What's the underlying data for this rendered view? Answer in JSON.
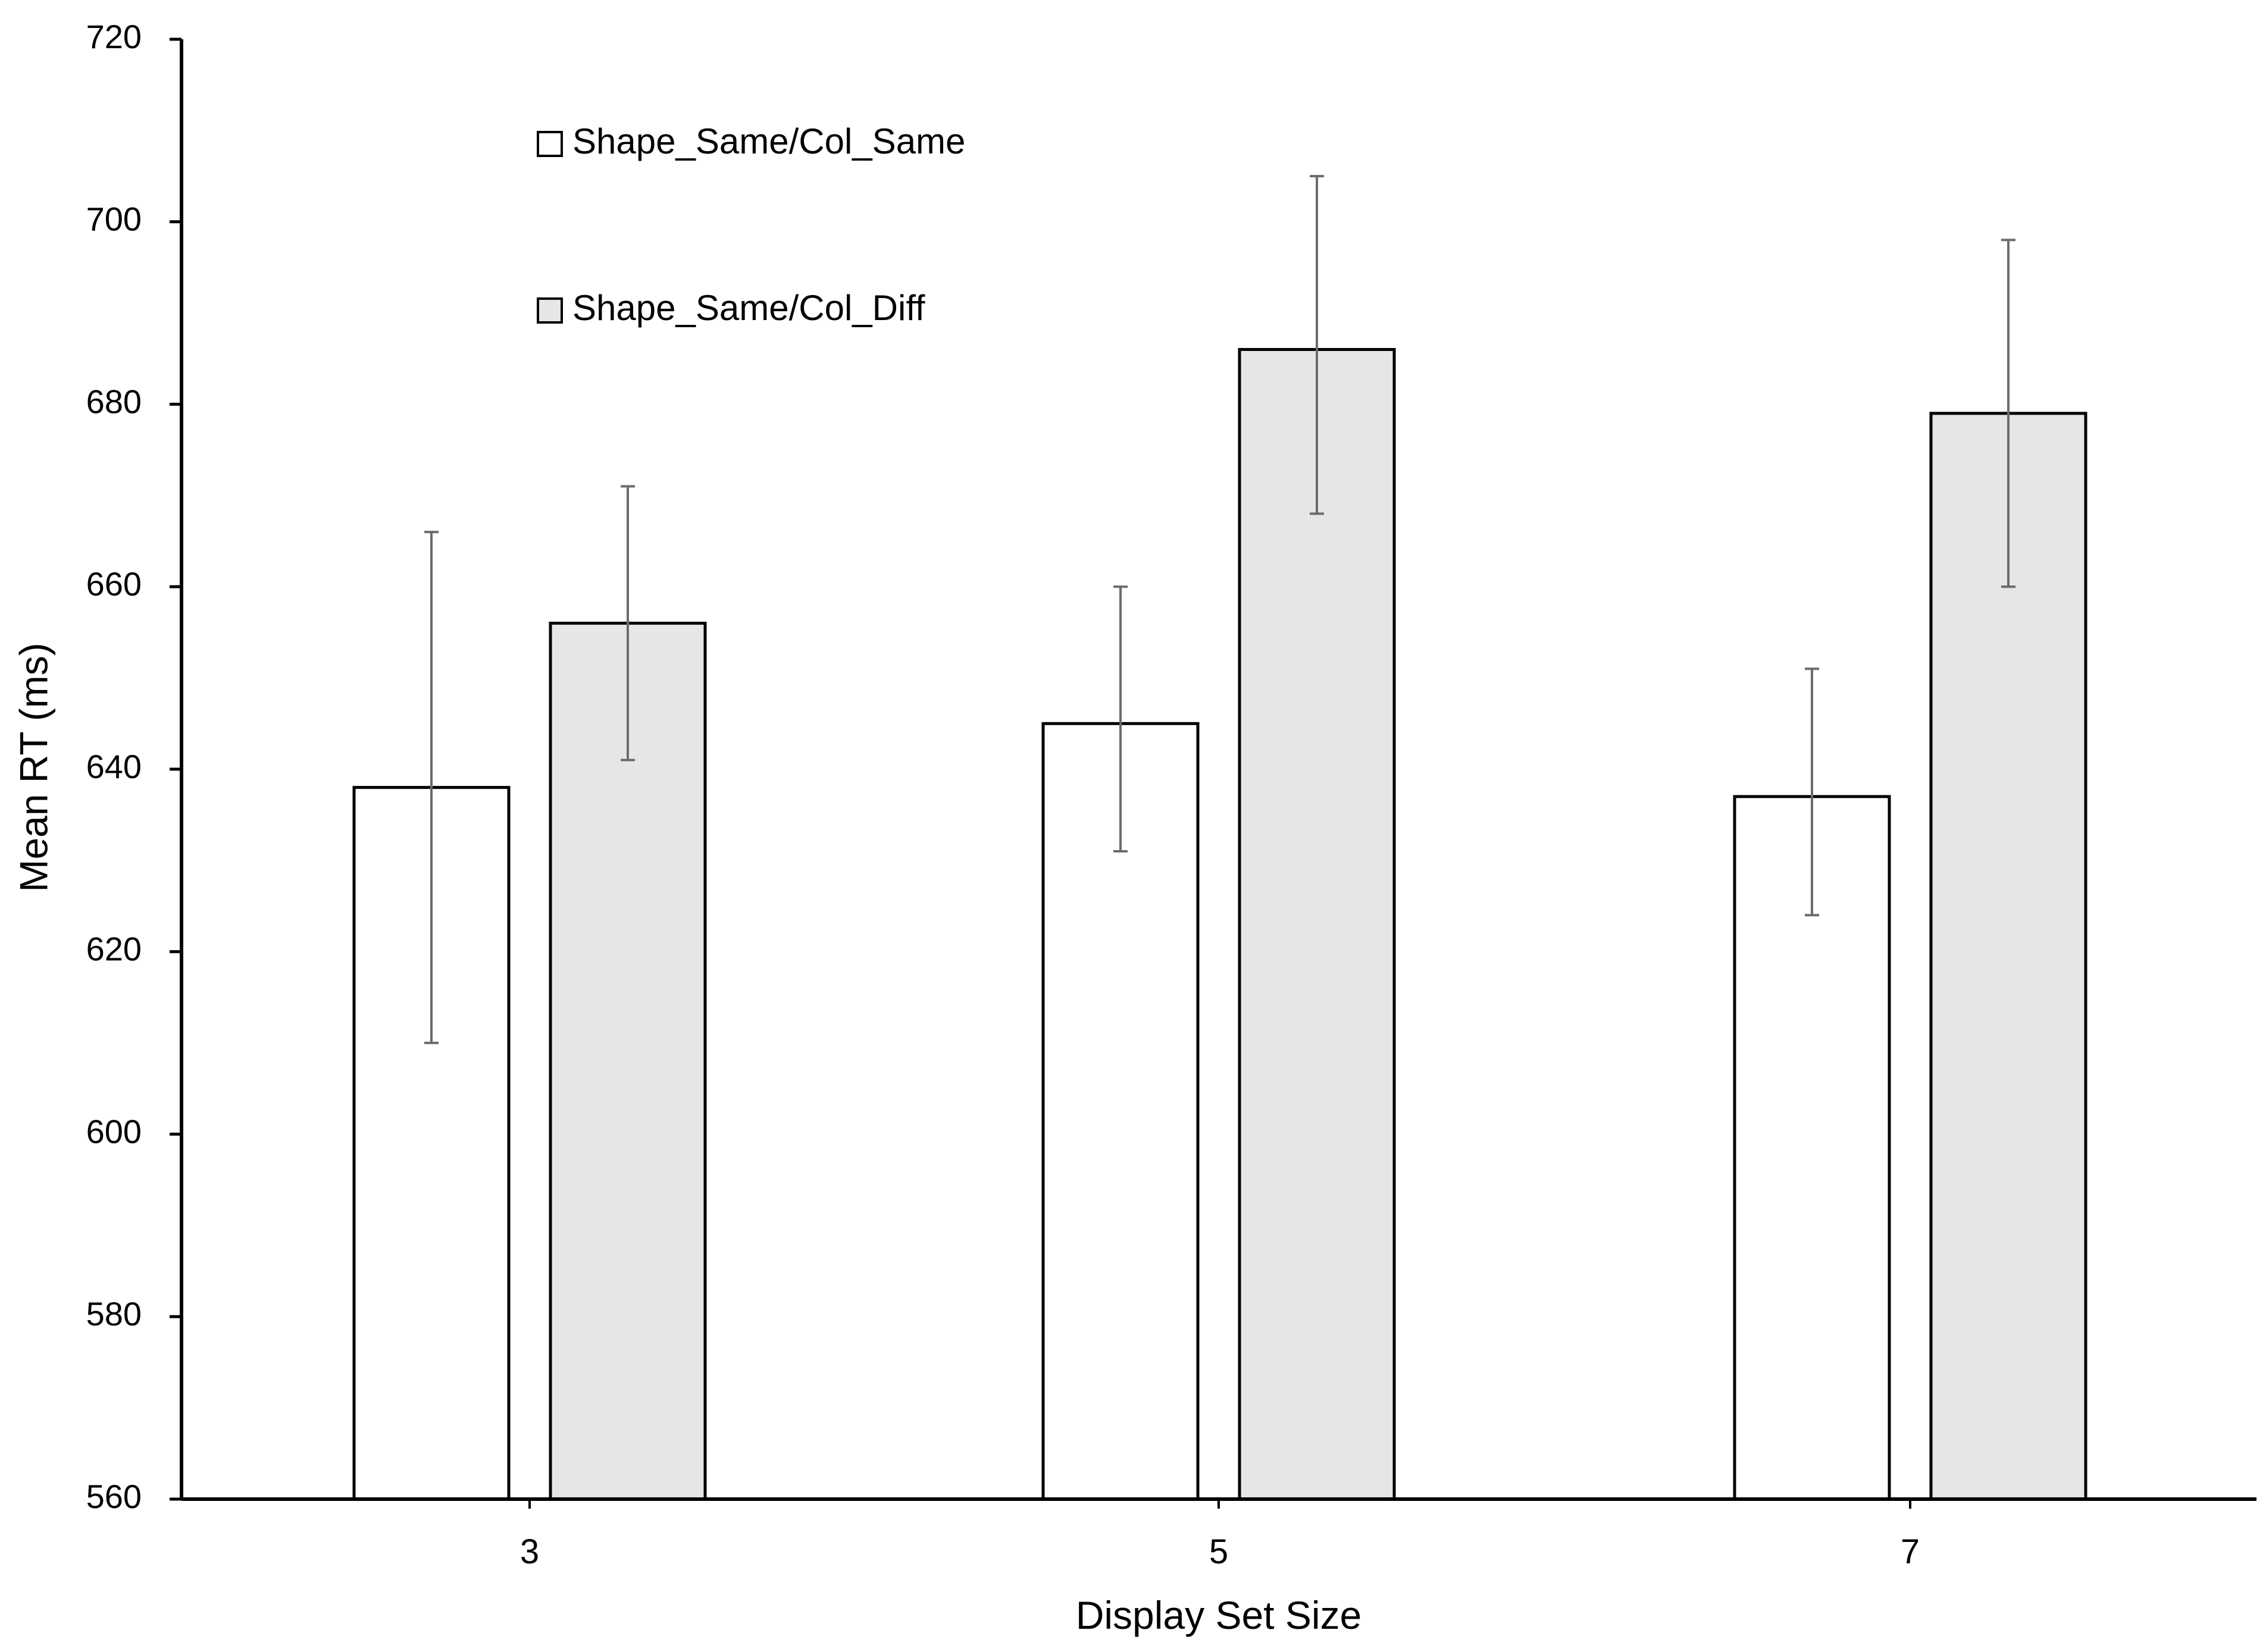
{
  "chart_data": {
    "type": "bar",
    "title": "",
    "xlabel": "Display Set Size",
    "ylabel": "Mean RT (ms)",
    "categories": [
      "3",
      "5",
      "7"
    ],
    "ylim": [
      560,
      720
    ],
    "yticks": [
      560,
      580,
      600,
      620,
      640,
      660,
      680,
      700,
      720
    ],
    "grid": false,
    "legend_position": "top-left",
    "series": [
      {
        "name": "Shape_Same/Col_Same",
        "color": "#ffffff",
        "values": [
          638,
          645,
          637
        ],
        "error_low": [
          610,
          631,
          624
        ],
        "error_high": [
          666,
          660,
          651
        ]
      },
      {
        "name": "Shape_Same/Col_Diff",
        "color": "#e6e6e6",
        "values": [
          656,
          686,
          679
        ],
        "error_low": [
          641,
          668,
          660
        ],
        "error_high": [
          671,
          705,
          698
        ]
      }
    ]
  }
}
